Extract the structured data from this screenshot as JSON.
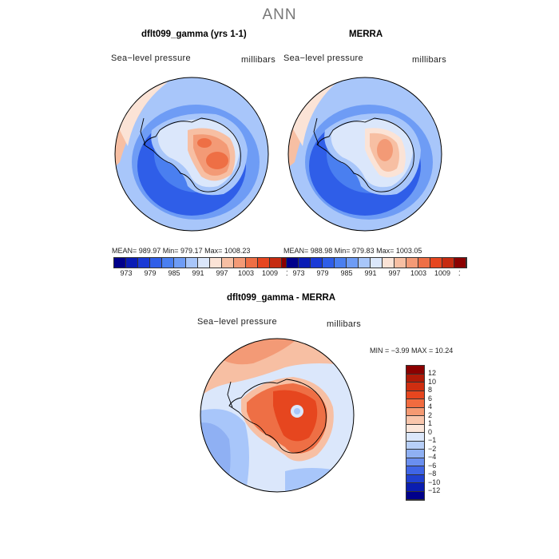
{
  "title": "ANN",
  "panels": [
    {
      "title": "dflt099_gamma (yrs 1-1)",
      "field": "Sea−level pressure",
      "units": "millibars",
      "stats": "MEAN= 989.97   Min= 979.17   Max= 1008.23"
    },
    {
      "title": "MERRA",
      "field": "Sea−level pressure",
      "units": "millibars",
      "stats": "MEAN= 988.98   Min= 979.83   Max= 1003.05"
    }
  ],
  "diff_panel": {
    "title": "dflt099_gamma - MERRA",
    "field": "Sea−level pressure",
    "units": "millibars",
    "stats": "MIN =   −3.99  MAX =   10.24"
  },
  "colorbar_top": {
    "tick_labels": [
      "973",
      "979",
      "985",
      "991",
      "997",
      "1003",
      "1009",
      "1015"
    ],
    "colors": [
      "#00008b",
      "#0a1cb5",
      "#1a3ad6",
      "#2f5ee8",
      "#4a7ff0",
      "#6e9cf5",
      "#a8c6fa",
      "#dbe7fb",
      "#fbe3d6",
      "#f7bfa3",
      "#f39a76",
      "#ee6f45",
      "#e6461f",
      "#c62b10",
      "#8b0000"
    ]
  },
  "colorbar_diff": {
    "tick_labels": [
      "12",
      "10",
      "8",
      "6",
      "4",
      "2",
      "1",
      "0",
      "−1",
      "−2",
      "−4",
      "−6",
      "−8",
      "−10",
      "−12"
    ],
    "colors": [
      "#8b0000",
      "#b01a08",
      "#cf2e10",
      "#e6461f",
      "#f16b3f",
      "#f59a73",
      "#f9c6ac",
      "#fbe6da",
      "#dbe7fb",
      "#b7cff8",
      "#8fb0f3",
      "#6a8ff0",
      "#3f65e6",
      "#2040d0",
      "#0a1db0",
      "#00008b"
    ]
  },
  "map_colors": {
    "ocean_deep_low": "#2f5ee8",
    "ocean_low": "#4a7ff0",
    "ocean_mid": "#6e9cf5",
    "ocean_pale": "#a8c6fa",
    "near_zero": "#dbe7fb",
    "warm_pale": "#f7bfa3",
    "warm_mid": "#f39a76",
    "warm_high": "#ee6f45",
    "warm_peak": "#e6461f"
  }
}
